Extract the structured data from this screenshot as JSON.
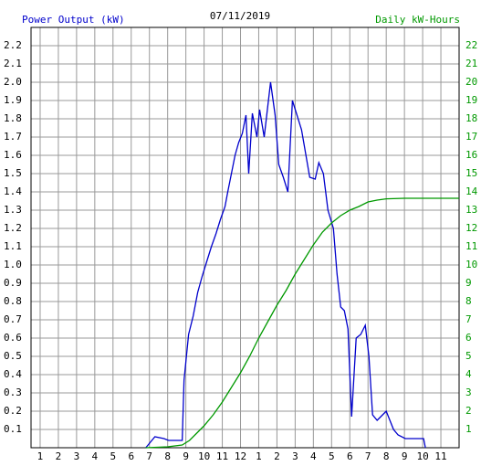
{
  "chart_data": {
    "type": "line",
    "title": "07/11/2019",
    "ylabel": "Power Output (kW)",
    "y2label": "Daily kW-Hours",
    "xlim": [
      0.5,
      24
    ],
    "ylim": [
      0,
      2.3
    ],
    "y2lim": [
      0,
      23
    ],
    "grid": true,
    "xticks": [
      1,
      2,
      3,
      4,
      5,
      6,
      7,
      8,
      9,
      10,
      11,
      12,
      {
        "value": 13,
        "label": "1"
      },
      {
        "value": 14,
        "label": "2"
      },
      {
        "value": 15,
        "label": "3"
      },
      {
        "value": 16,
        "label": "4"
      },
      {
        "value": 17,
        "label": "5"
      },
      {
        "value": 18,
        "label": "6"
      },
      {
        "value": 19,
        "label": "7"
      },
      {
        "value": 20,
        "label": "8"
      },
      {
        "value": 21,
        "label": "9"
      },
      {
        "value": 22,
        "label": "10"
      },
      {
        "value": 23,
        "label": "11"
      }
    ],
    "yticks": [
      0.1,
      0.2,
      0.3,
      0.4,
      0.5,
      0.6,
      0.7,
      0.8,
      0.9,
      {
        "value": 1,
        "label": "1.0"
      },
      1.1,
      1.2,
      1.3,
      1.4,
      1.5,
      1.6,
      1.7,
      1.8,
      1.9,
      {
        "value": 2,
        "label": "2.0"
      },
      2.1,
      2.2
    ],
    "y2ticks": [
      1,
      2,
      3,
      4,
      5,
      6,
      7,
      8,
      9,
      10,
      11,
      12,
      13,
      14,
      15,
      16,
      17,
      18,
      19,
      20,
      21,
      22
    ],
    "series": [
      {
        "name": "Power Output (kW)",
        "color": "#0000cc",
        "x": [
          6.8,
          7.05,
          7.3,
          7.8,
          8.05,
          8.8,
          8.9,
          9.15,
          9.4,
          9.65,
          9.9,
          10.15,
          10.4,
          10.65,
          10.9,
          11.15,
          11.3,
          11.5,
          11.7,
          11.9,
          12.1,
          12.3,
          12.45,
          12.65,
          12.9,
          13.05,
          13.3,
          13.65,
          13.9,
          14.1,
          14.35,
          14.6,
          14.85,
          15.1,
          15.35,
          15.8,
          16.1,
          16.3,
          16.55,
          16.8,
          17.1,
          17.3,
          17.5,
          17.7,
          17.9,
          18.1,
          18.35,
          18.6,
          18.85,
          19.05,
          19.25,
          19.5,
          19.8,
          20.0,
          20.2,
          20.4,
          20.65,
          21.05,
          22.05,
          22.15
        ],
        "values": [
          0,
          0.03,
          0.06,
          0.05,
          0.04,
          0.04,
          0.37,
          0.62,
          0.72,
          0.85,
          0.94,
          1.02,
          1.1,
          1.17,
          1.25,
          1.32,
          1.4,
          1.5,
          1.6,
          1.67,
          1.72,
          1.82,
          1.5,
          1.83,
          1.7,
          1.85,
          1.7,
          2.0,
          1.82,
          1.55,
          1.48,
          1.4,
          1.9,
          1.82,
          1.74,
          1.48,
          1.47,
          1.56,
          1.5,
          1.3,
          1.2,
          0.95,
          0.77,
          0.75,
          0.65,
          0.17,
          0.6,
          0.62,
          0.67,
          0.5,
          0.18,
          0.15,
          0.18,
          0.2,
          0.15,
          0.1,
          0.07,
          0.05,
          0.05,
          0
        ]
      },
      {
        "name": "Daily kW-Hours",
        "color": "#009900",
        "axis": "y2",
        "x": [
          6.8,
          8.0,
          8.8,
          9.2,
          9.6,
          10.0,
          10.5,
          11.0,
          11.5,
          12.0,
          12.5,
          13.0,
          13.5,
          14.0,
          14.5,
          15.0,
          15.5,
          16.0,
          16.5,
          17.0,
          17.5,
          18.0,
          18.5,
          19.0,
          19.5,
          20.0,
          21.0,
          24.0
        ],
        "values": [
          0,
          0.05,
          0.15,
          0.4,
          0.8,
          1.2,
          1.8,
          2.5,
          3.3,
          4.1,
          5.0,
          6.0,
          6.9,
          7.8,
          8.6,
          9.5,
          10.3,
          11.1,
          11.8,
          12.3,
          12.7,
          13.0,
          13.2,
          13.45,
          13.55,
          13.62,
          13.65,
          13.65
        ]
      }
    ]
  }
}
